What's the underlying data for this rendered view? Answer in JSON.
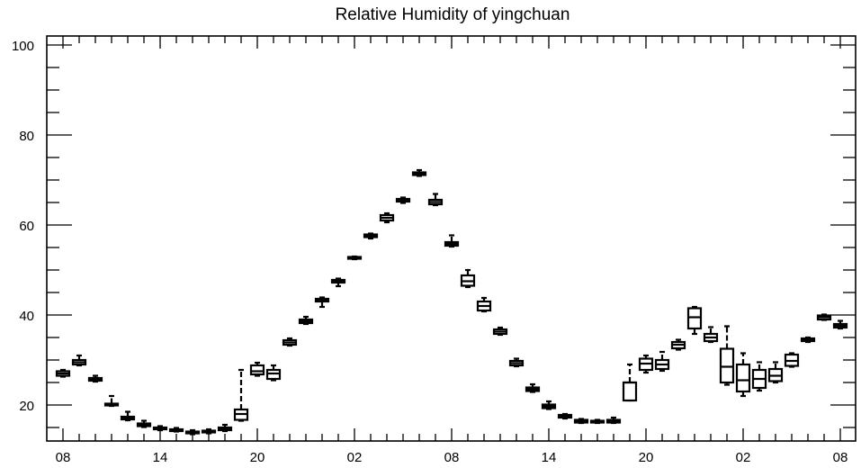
{
  "chart_data": {
    "type": "box",
    "title": "Relative Humidity of yingchuan",
    "xlabel": "",
    "ylabel": "",
    "ylim": [
      12,
      102
    ],
    "y_ticks": [
      20,
      40,
      60,
      80,
      100
    ],
    "x_tick_labels": [
      "08",
      "14",
      "20",
      "02",
      "08",
      "14",
      "20",
      "02",
      "08"
    ],
    "x_tick_positions": [
      0,
      6,
      12,
      18,
      24,
      30,
      36,
      42,
      48
    ],
    "grid": false,
    "boxes": [
      {
        "x": 0,
        "whisker_low": 26.3,
        "q1": 26.5,
        "median": 27.0,
        "q3": 27.5,
        "whisker_high": 27.8
      },
      {
        "x": 1,
        "whisker_low": 28.8,
        "q1": 29.0,
        "median": 29.5,
        "q3": 30.0,
        "whisker_high": 31.0
      },
      {
        "x": 2,
        "whisker_low": 25.2,
        "q1": 25.4,
        "median": 25.7,
        "q3": 26.0,
        "whisker_high": 26.5
      },
      {
        "x": 3,
        "whisker_low": 19.8,
        "q1": 19.9,
        "median": 20.1,
        "q3": 20.3,
        "whisker_high": 22.0
      },
      {
        "x": 4,
        "whisker_low": 16.6,
        "q1": 16.8,
        "median": 17.1,
        "q3": 17.4,
        "whisker_high": 18.5
      },
      {
        "x": 5,
        "whisker_low": 15.1,
        "q1": 15.3,
        "median": 15.6,
        "q3": 15.9,
        "whisker_high": 16.5
      },
      {
        "x": 6,
        "whisker_low": 14.4,
        "q1": 14.6,
        "median": 14.8,
        "q3": 15.0,
        "whisker_high": 15.3
      },
      {
        "x": 7,
        "whisker_low": 14.1,
        "q1": 14.2,
        "median": 14.4,
        "q3": 14.6,
        "whisker_high": 14.9
      },
      {
        "x": 8,
        "whisker_low": 13.5,
        "q1": 13.7,
        "median": 13.9,
        "q3": 14.1,
        "whisker_high": 14.4
      },
      {
        "x": 9,
        "whisker_low": 13.7,
        "q1": 13.9,
        "median": 14.1,
        "q3": 14.3,
        "whisker_high": 14.6
      },
      {
        "x": 10,
        "whisker_low": 14.2,
        "q1": 14.4,
        "median": 14.7,
        "q3": 15.0,
        "whisker_high": 15.6
      },
      {
        "x": 11,
        "whisker_low": 16.5,
        "q1": 16.7,
        "median": 18.0,
        "q3": 19.0,
        "whisker_high": 27.8
      },
      {
        "x": 12,
        "whisker_low": 26.5,
        "q1": 26.8,
        "median": 27.5,
        "q3": 28.8,
        "whisker_high": 29.4
      },
      {
        "x": 13,
        "whisker_low": 25.5,
        "q1": 25.8,
        "median": 27.0,
        "q3": 27.8,
        "whisker_high": 28.8
      },
      {
        "x": 14,
        "whisker_low": 33.2,
        "q1": 33.4,
        "median": 33.9,
        "q3": 34.4,
        "whisker_high": 34.8
      },
      {
        "x": 15,
        "whisker_low": 38.0,
        "q1": 38.2,
        "median": 38.6,
        "q3": 39.0,
        "whisker_high": 39.6
      },
      {
        "x": 16,
        "whisker_low": 41.8,
        "q1": 43.0,
        "median": 43.3,
        "q3": 43.6,
        "whisker_high": 43.9
      },
      {
        "x": 17,
        "whisker_low": 46.4,
        "q1": 47.2,
        "median": 47.5,
        "q3": 47.8,
        "whisker_high": 48.1
      },
      {
        "x": 18,
        "whisker_low": 52.4,
        "q1": 52.5,
        "median": 52.7,
        "q3": 52.9,
        "whisker_high": 53.0
      },
      {
        "x": 19,
        "whisker_low": 57.0,
        "q1": 57.3,
        "median": 57.6,
        "q3": 57.9,
        "whisker_high": 58.1
      },
      {
        "x": 20,
        "whisker_low": 60.6,
        "q1": 61.0,
        "median": 61.6,
        "q3": 62.2,
        "whisker_high": 62.6
      },
      {
        "x": 21,
        "whisker_low": 64.9,
        "q1": 65.2,
        "median": 65.5,
        "q3": 65.8,
        "whisker_high": 66.1
      },
      {
        "x": 22,
        "whisker_low": 70.9,
        "q1": 71.1,
        "median": 71.4,
        "q3": 71.7,
        "whisker_high": 72.2
      },
      {
        "x": 23,
        "whisker_low": 64.4,
        "q1": 64.6,
        "median": 65.1,
        "q3": 65.6,
        "whisker_high": 66.9
      },
      {
        "x": 24,
        "whisker_low": 55.2,
        "q1": 55.4,
        "median": 55.8,
        "q3": 56.2,
        "whisker_high": 57.7
      },
      {
        "x": 25,
        "whisker_low": 46.2,
        "q1": 46.5,
        "median": 47.5,
        "q3": 48.8,
        "whisker_high": 50.0
      },
      {
        "x": 26,
        "whisker_low": 40.8,
        "q1": 41.0,
        "median": 42.0,
        "q3": 43.0,
        "whisker_high": 43.8
      },
      {
        "x": 27,
        "whisker_low": 35.6,
        "q1": 35.8,
        "median": 36.3,
        "q3": 36.8,
        "whisker_high": 37.2
      },
      {
        "x": 28,
        "whisker_low": 28.6,
        "q1": 28.8,
        "median": 29.3,
        "q3": 29.8,
        "whisker_high": 30.3
      },
      {
        "x": 29,
        "whisker_low": 22.9,
        "q1": 23.1,
        "median": 23.5,
        "q3": 23.9,
        "whisker_high": 24.6
      },
      {
        "x": 30,
        "whisker_low": 19.1,
        "q1": 19.3,
        "median": 19.7,
        "q3": 20.1,
        "whisker_high": 20.8
      },
      {
        "x": 31,
        "whisker_low": 17.0,
        "q1": 17.2,
        "median": 17.5,
        "q3": 17.8,
        "whisker_high": 18.0
      },
      {
        "x": 32,
        "whisker_low": 16.0,
        "q1": 16.1,
        "median": 16.4,
        "q3": 16.7,
        "whisker_high": 16.9
      },
      {
        "x": 33,
        "whisker_low": 16.0,
        "q1": 16.1,
        "median": 16.3,
        "q3": 16.5,
        "whisker_high": 16.7
      },
      {
        "x": 34,
        "whisker_low": 16.0,
        "q1": 16.1,
        "median": 16.4,
        "q3": 16.7,
        "whisker_high": 17.2
      },
      {
        "x": 35,
        "whisker_low": 21.0,
        "q1": 21.0,
        "median": 25.0,
        "q3": 25.0,
        "whisker_high": 29.0
      },
      {
        "x": 36,
        "whisker_low": 27.2,
        "q1": 27.8,
        "median": 29.2,
        "q3": 30.3,
        "whisker_high": 31.0
      },
      {
        "x": 37,
        "whisker_low": 27.6,
        "q1": 28.0,
        "median": 29.0,
        "q3": 30.0,
        "whisker_high": 31.8
      },
      {
        "x": 38,
        "whisker_low": 32.3,
        "q1": 32.6,
        "median": 33.4,
        "q3": 34.0,
        "whisker_high": 34.5
      },
      {
        "x": 39,
        "whisker_low": 35.8,
        "q1": 37.0,
        "median": 39.5,
        "q3": 41.5,
        "whisker_high": 41.8
      },
      {
        "x": 40,
        "whisker_low": 34.0,
        "q1": 34.2,
        "median": 35.0,
        "q3": 35.8,
        "whisker_high": 37.3
      },
      {
        "x": 41,
        "whisker_low": 24.5,
        "q1": 25.0,
        "median": 28.5,
        "q3": 32.5,
        "whisker_high": 37.5
      },
      {
        "x": 42,
        "whisker_low": 22.0,
        "q1": 23.0,
        "median": 25.5,
        "q3": 29.0,
        "whisker_high": 31.5
      },
      {
        "x": 43,
        "whisker_low": 23.2,
        "q1": 23.8,
        "median": 25.8,
        "q3": 27.8,
        "whisker_high": 29.5
      },
      {
        "x": 44,
        "whisker_low": 25.0,
        "q1": 25.3,
        "median": 26.5,
        "q3": 28.0,
        "whisker_high": 29.5
      },
      {
        "x": 45,
        "whisker_low": 28.5,
        "q1": 28.7,
        "median": 29.8,
        "q3": 31.2,
        "whisker_high": 31.5
      },
      {
        "x": 46,
        "whisker_low": 34.0,
        "q1": 34.2,
        "median": 34.5,
        "q3": 34.8,
        "whisker_high": 35.0
      },
      {
        "x": 47,
        "whisker_low": 38.9,
        "q1": 39.0,
        "median": 39.5,
        "q3": 39.9,
        "whisker_high": 40.1
      },
      {
        "x": 48,
        "whisker_low": 37.0,
        "q1": 37.2,
        "median": 37.6,
        "q3": 38.0,
        "whisker_high": 38.7
      }
    ]
  }
}
